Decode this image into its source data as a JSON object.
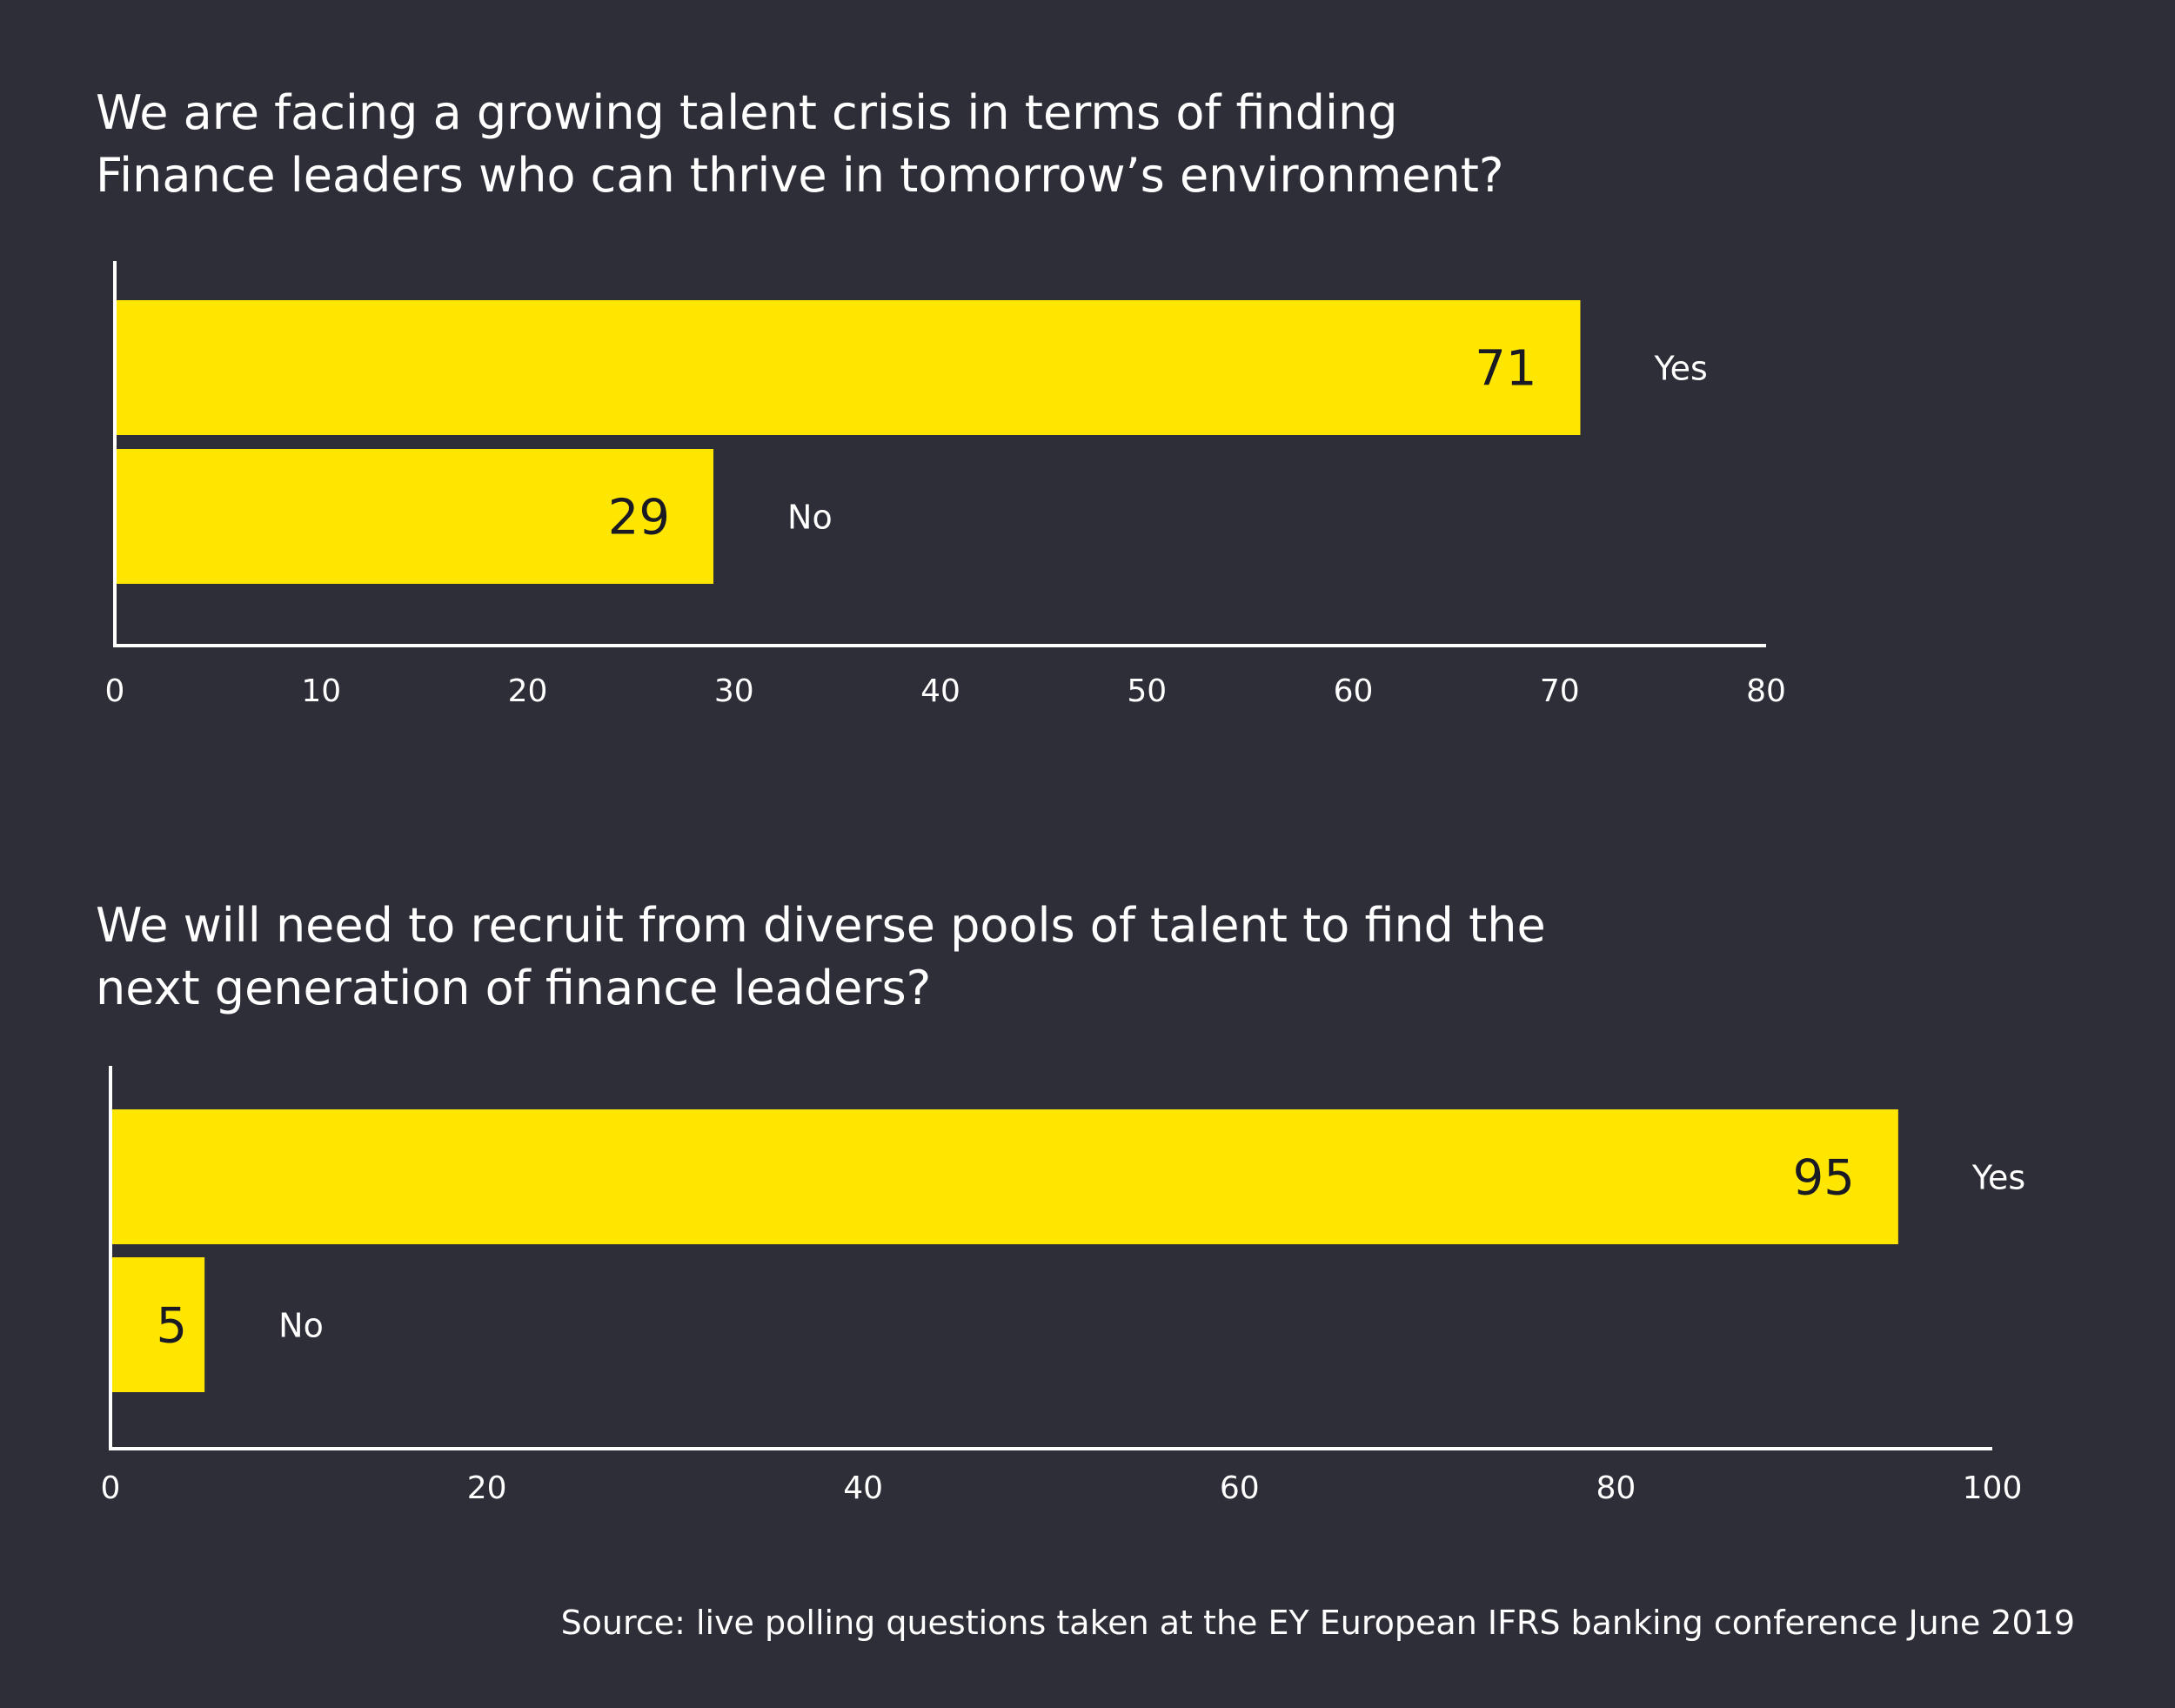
{
  "colors": {
    "background": "#2e2e38",
    "bar": "#ffe600",
    "axis": "#ffffff",
    "text": "#ffffff",
    "value_text": "#1a1a24"
  },
  "chart_data": [
    {
      "type": "bar",
      "orientation": "horizontal",
      "title": [
        "We are facing a growing talent crisis in terms of finding",
        "Finance leaders who can thrive in tomorrow’s environment?"
      ],
      "categories": [
        "Yes",
        "No"
      ],
      "values": [
        71,
        29
      ],
      "xlim": [
        0,
        80
      ],
      "xticks": [
        0,
        10,
        20,
        30,
        40,
        50,
        60,
        70,
        80
      ],
      "grid": false,
      "legend": "none"
    },
    {
      "type": "bar",
      "orientation": "horizontal",
      "title": [
        "We will need to recruit from diverse pools of talent to find the",
        "next generation of finance leaders?"
      ],
      "categories": [
        "Yes",
        "No"
      ],
      "values": [
        95,
        5
      ],
      "xlim": [
        0,
        100
      ],
      "xticks": [
        0,
        20,
        40,
        60,
        80,
        100
      ],
      "grid": false,
      "legend": "none"
    }
  ],
  "source": "Source: live polling questions taken at the EY European IFRS banking conference June 2019"
}
